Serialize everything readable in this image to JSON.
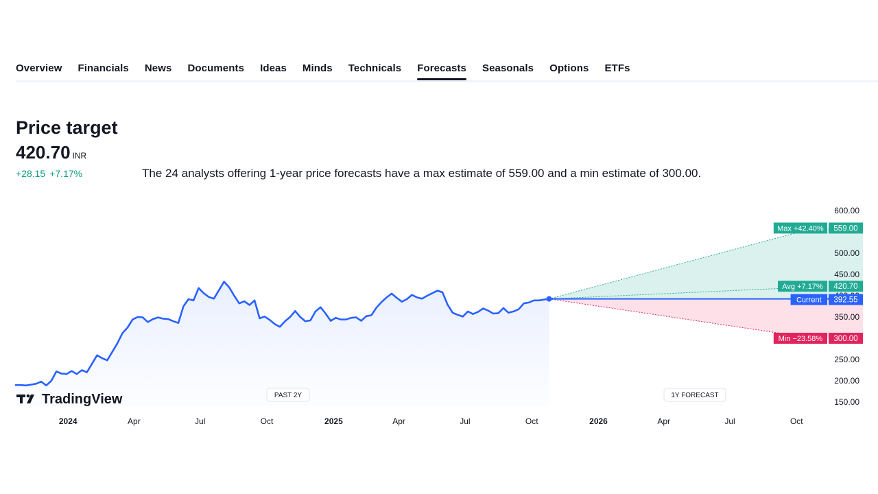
{
  "tabs": [
    "Overview",
    "Financials",
    "News",
    "Documents",
    "Ideas",
    "Minds",
    "Technicals",
    "Forecasts",
    "Seasonals",
    "Options",
    "ETFs"
  ],
  "active_tab": "Forecasts",
  "header": {
    "title": "Price target",
    "price": "420.70",
    "currency": "INR",
    "change_abs": "+28.15",
    "change_pct": "+7.17%",
    "description": "The 24 analysts offering 1-year price forecasts have a max estimate of 559.00 and a min estimate of 300.00."
  },
  "colors": {
    "line": "#2962ff",
    "max": "#22ab94",
    "avg": "#22ab94",
    "current": "#2962ff",
    "min": "#e0245e",
    "text": "#131722"
  },
  "chart": {
    "brand": "TradingView",
    "past_label": "PAST 2Y",
    "forecast_label": "1Y FORECAST"
  },
  "chart_data": {
    "type": "line",
    "xlabel": "",
    "ylabel": "",
    "y_ticks": [
      "150.00",
      "200.00",
      "250.00",
      "350.00",
      "400.00",
      "450.00",
      "500.00",
      "600.00"
    ],
    "ylim": [
      150,
      600
    ],
    "x_ticks": [
      "2024",
      "Apr",
      "Jul",
      "Oct",
      "2025",
      "Apr",
      "Jul",
      "Oct",
      "2026",
      "Apr",
      "Jul",
      "Oct"
    ],
    "x_tick_dates": [
      "2024-01-01",
      "2024-04-01",
      "2024-07-01",
      "2024-10-01",
      "2025-01-01",
      "2025-04-01",
      "2025-07-01",
      "2025-10-01",
      "2026-01-01",
      "2026-04-01",
      "2026-07-01",
      "2026-10-01"
    ],
    "xlim": [
      "2023-10-21",
      "2026-11-16"
    ],
    "series": [
      {
        "x": [
          "2023-10-21",
          "2023-10-28",
          "2023-11-04",
          "2023-11-11",
          "2023-11-18",
          "2023-11-25",
          "2023-12-02",
          "2023-12-09",
          "2023-12-16",
          "2023-12-23",
          "2023-12-30",
          "2024-01-06",
          "2024-01-13",
          "2024-01-20",
          "2024-01-27",
          "2024-02-03",
          "2024-02-10",
          "2024-02-17",
          "2024-02-24",
          "2024-03-02",
          "2024-03-09",
          "2024-03-16",
          "2024-03-23",
          "2024-03-30",
          "2024-04-06",
          "2024-04-13",
          "2024-04-20",
          "2024-04-27",
          "2024-05-04",
          "2024-05-11",
          "2024-05-18",
          "2024-05-25",
          "2024-06-01",
          "2024-06-08",
          "2024-06-15",
          "2024-06-22",
          "2024-06-29",
          "2024-07-06",
          "2024-07-13",
          "2024-07-20",
          "2024-07-27",
          "2024-08-03",
          "2024-08-10",
          "2024-08-17",
          "2024-08-24",
          "2024-08-31",
          "2024-09-07",
          "2024-09-14",
          "2024-09-21",
          "2024-09-28",
          "2024-10-05",
          "2024-10-12",
          "2024-10-19",
          "2024-10-26",
          "2024-11-02",
          "2024-11-09",
          "2024-11-16",
          "2024-11-23",
          "2024-11-30",
          "2024-12-07",
          "2024-12-14",
          "2024-12-21",
          "2024-12-28",
          "2025-01-04",
          "2025-01-11",
          "2025-01-18",
          "2025-01-25",
          "2025-02-01",
          "2025-02-08",
          "2025-02-15",
          "2025-02-22",
          "2025-03-01",
          "2025-03-08",
          "2025-03-15",
          "2025-03-22",
          "2025-03-29",
          "2025-04-05",
          "2025-04-12",
          "2025-04-19",
          "2025-04-26",
          "2025-05-03",
          "2025-05-10",
          "2025-05-17",
          "2025-05-24",
          "2025-05-31",
          "2025-06-07",
          "2025-06-14",
          "2025-06-21",
          "2025-06-28",
          "2025-07-05",
          "2025-07-12",
          "2025-07-19",
          "2025-07-26",
          "2025-08-02",
          "2025-08-09",
          "2025-08-16",
          "2025-08-23",
          "2025-08-30",
          "2025-09-06",
          "2025-09-13",
          "2025-09-20",
          "2025-09-27",
          "2025-10-04",
          "2025-10-11",
          "2025-10-18",
          "2025-10-25"
        ],
        "values": [
          190,
          190,
          189,
          191,
          193,
          198,
          189,
          200,
          222,
          217,
          216,
          223,
          216,
          225,
          220,
          240,
          260,
          253,
          248,
          268,
          288,
          312,
          325,
          344,
          350,
          349,
          338,
          345,
          349,
          346,
          345,
          340,
          336,
          375,
          392,
          389,
          418,
          406,
          397,
          393,
          413,
          433,
          420,
          400,
          382,
          387,
          378,
          389,
          347,
          351,
          343,
          333,
          327,
          340,
          350,
          364,
          350,
          340,
          342,
          363,
          373,
          358,
          341,
          348,
          344,
          344,
          348,
          349,
          341,
          352,
          354,
          372,
          385,
          396,
          405,
          395,
          386,
          392,
          402,
          396,
          393,
          400,
          406,
          412,
          408,
          379,
          360,
          355,
          351,
          363,
          357,
          362,
          370,
          365,
          358,
          359,
          371,
          360,
          363,
          368,
          382,
          384,
          389,
          389,
          391,
          392.55
        ]
      }
    ],
    "forecast": {
      "start_date": "2025-10-25",
      "end_date": "2026-10-25",
      "current": 392.55,
      "max": 559.0,
      "avg": 420.7,
      "min": 300.0,
      "labels": {
        "max": "Max +42.40%",
        "avg": "Avg +7.17%",
        "current": "Current",
        "min": "Min −23.58%",
        "max_value": "559.00",
        "avg_value": "420.70",
        "current_value": "392.55",
        "min_value": "300.00"
      }
    }
  }
}
